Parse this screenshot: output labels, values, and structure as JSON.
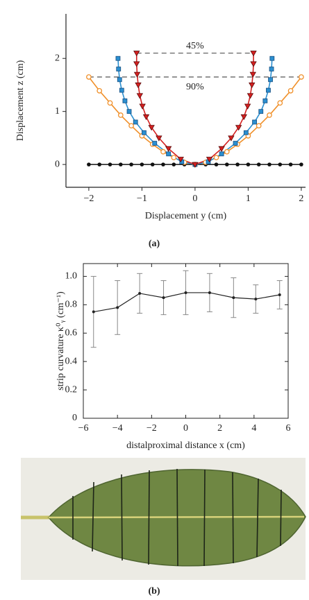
{
  "chart_data": [
    {
      "type": "line",
      "caption": "(a)",
      "xlabel": "Displacement  y (cm)",
      "ylabel": "Displacement  z (cm)",
      "xlim": [
        -2.43,
        2.08
      ],
      "ylim": [
        -0.43,
        2.84
      ],
      "xticks": [
        {
          "value": -2,
          "label": "−2"
        },
        {
          "value": -1,
          "label": "−1"
        },
        0,
        1,
        2
      ],
      "yticks": [
        0,
        1,
        2
      ],
      "annotations": [
        {
          "text": "45%",
          "x": [
            -1.1,
            1.1
          ],
          "y": 2.1
        },
        {
          "text": "90%",
          "x": [
            -2,
            2
          ],
          "y": 1.65
        }
      ],
      "series": [
        {
          "color": "#111111",
          "marker": "circle-filled",
          "x": [
            -2,
            -1.8,
            -1.6,
            -1.4,
            -1.2,
            -1,
            -0.8,
            -0.6,
            -0.4,
            -0.2,
            0,
            0.2,
            0.4,
            0.6,
            0.8,
            1,
            1.2,
            1.4,
            1.6,
            1.8,
            2
          ],
          "values": [
            0,
            0,
            0,
            0,
            0,
            0,
            0,
            0,
            0,
            0,
            0,
            0,
            0,
            0,
            0,
            0,
            0,
            0,
            0,
            0,
            0
          ]
        },
        {
          "color": "#f0902a",
          "marker": "circle-open",
          "x": [
            -2,
            -1.8,
            -1.6,
            -1.4,
            -1.2,
            -1,
            -0.8,
            -0.6,
            -0.4,
            -0.2,
            0,
            0.2,
            0.4,
            0.6,
            0.8,
            1,
            1.2,
            1.4,
            1.6,
            1.8,
            2
          ],
          "values": [
            1.65,
            1.39,
            1.16,
            0.93,
            0.73,
            0.54,
            0.38,
            0.24,
            0.13,
            0.04,
            0,
            0.04,
            0.13,
            0.24,
            0.38,
            0.54,
            0.73,
            0.93,
            1.16,
            1.39,
            1.65
          ]
        },
        {
          "color": "#2b8fd0",
          "marker": "square",
          "x": [
            -1.45,
            -1.44,
            -1.42,
            -1.38,
            -1.32,
            -1.24,
            -1.12,
            -0.96,
            -0.76,
            -0.5,
            -0.25,
            0,
            0.25,
            0.5,
            0.76,
            0.96,
            1.12,
            1.24,
            1.32,
            1.38,
            1.42,
            1.44,
            1.45
          ],
          "values": [
            2.0,
            1.8,
            1.6,
            1.4,
            1.2,
            1.0,
            0.8,
            0.6,
            0.4,
            0.2,
            0.05,
            0,
            0.05,
            0.2,
            0.4,
            0.6,
            0.8,
            1.0,
            1.2,
            1.4,
            1.6,
            1.8,
            2.0
          ]
        },
        {
          "color": "#d42020",
          "marker": "triangle",
          "x": [
            -1.1,
            -1.1,
            -1.09,
            -1.07,
            -1.04,
            -0.99,
            -0.92,
            -0.82,
            -0.68,
            -0.5,
            -0.27,
            0,
            0.27,
            0.5,
            0.68,
            0.82,
            0.92,
            0.99,
            1.04,
            1.07,
            1.09,
            1.1,
            1.1
          ],
          "values": [
            2.1,
            1.9,
            1.7,
            1.5,
            1.3,
            1.1,
            0.9,
            0.7,
            0.5,
            0.3,
            0.1,
            0,
            0.1,
            0.3,
            0.5,
            0.7,
            0.9,
            1.1,
            1.3,
            1.5,
            1.7,
            1.9,
            2.1
          ]
        }
      ]
    },
    {
      "type": "errorbar",
      "xlabel": "distalproximal distance x (cm)",
      "ylabel": "strip curvature κ⁰ᵧ (cm⁻¹)",
      "xlim": [
        -6,
        6
      ],
      "ylim": [
        0,
        1.09
      ],
      "xticks": [
        {
          "value": -6,
          "label": "−6"
        },
        {
          "value": -4,
          "label": "−4"
        },
        {
          "value": -2,
          "label": "−2"
        },
        0,
        2,
        4,
        6
      ],
      "yticks": [
        0,
        0.2,
        0.4,
        0.6,
        0.8,
        {
          "value": 1,
          "label": "1.0"
        }
      ],
      "color": "#222222",
      "x": [
        -5.4,
        -4,
        -2.7,
        -1.3,
        0,
        1.4,
        2.8,
        4.1,
        5.5
      ],
      "values": [
        0.75,
        0.78,
        0.88,
        0.85,
        0.885,
        0.885,
        0.85,
        0.84,
        0.87
      ],
      "errors": [
        0.25,
        0.19,
        0.14,
        0.12,
        0.155,
        0.135,
        0.14,
        0.1,
        0.1
      ],
      "caption": "(b)"
    }
  ]
}
